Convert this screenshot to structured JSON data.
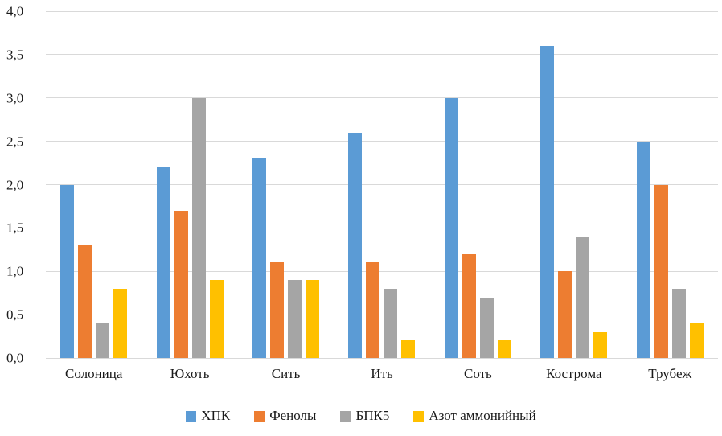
{
  "chart_data": {
    "type": "bar",
    "title": "",
    "xlabel": "",
    "ylabel": "",
    "categories": [
      "Солоница",
      "Юхоть",
      "Сить",
      "Ить",
      "Соть",
      "Кострома",
      "Трубеж"
    ],
    "series": [
      {
        "name": "ХПК",
        "color": "#5B9BD5",
        "values": [
          2.0,
          2.2,
          2.3,
          2.6,
          3.0,
          3.6,
          2.5
        ]
      },
      {
        "name": "Фенолы",
        "color": "#ED7D31",
        "values": [
          1.3,
          1.7,
          1.1,
          1.1,
          1.2,
          1.0,
          2.0
        ]
      },
      {
        "name": "БПК5",
        "color": "#A5A5A5",
        "values": [
          0.4,
          3.0,
          0.9,
          0.8,
          0.7,
          1.4,
          0.8
        ]
      },
      {
        "name": "Азот аммонийный",
        "color": "#FFC000",
        "values": [
          0.8,
          0.9,
          0.9,
          0.2,
          0.2,
          0.3,
          0.4
        ]
      }
    ],
    "ylim": [
      0,
      4
    ],
    "ytick_step": 0.5,
    "ytick_labels": [
      "0,0",
      "0,5",
      "1,0",
      "1,5",
      "2,0",
      "2,5",
      "3,0",
      "3,5",
      "4,0"
    ],
    "grid": true,
    "gridline_color": "#d9d9d9",
    "legend_position": "bottom",
    "background_color": "#ffffff",
    "text_color": "#1a1a1a"
  }
}
